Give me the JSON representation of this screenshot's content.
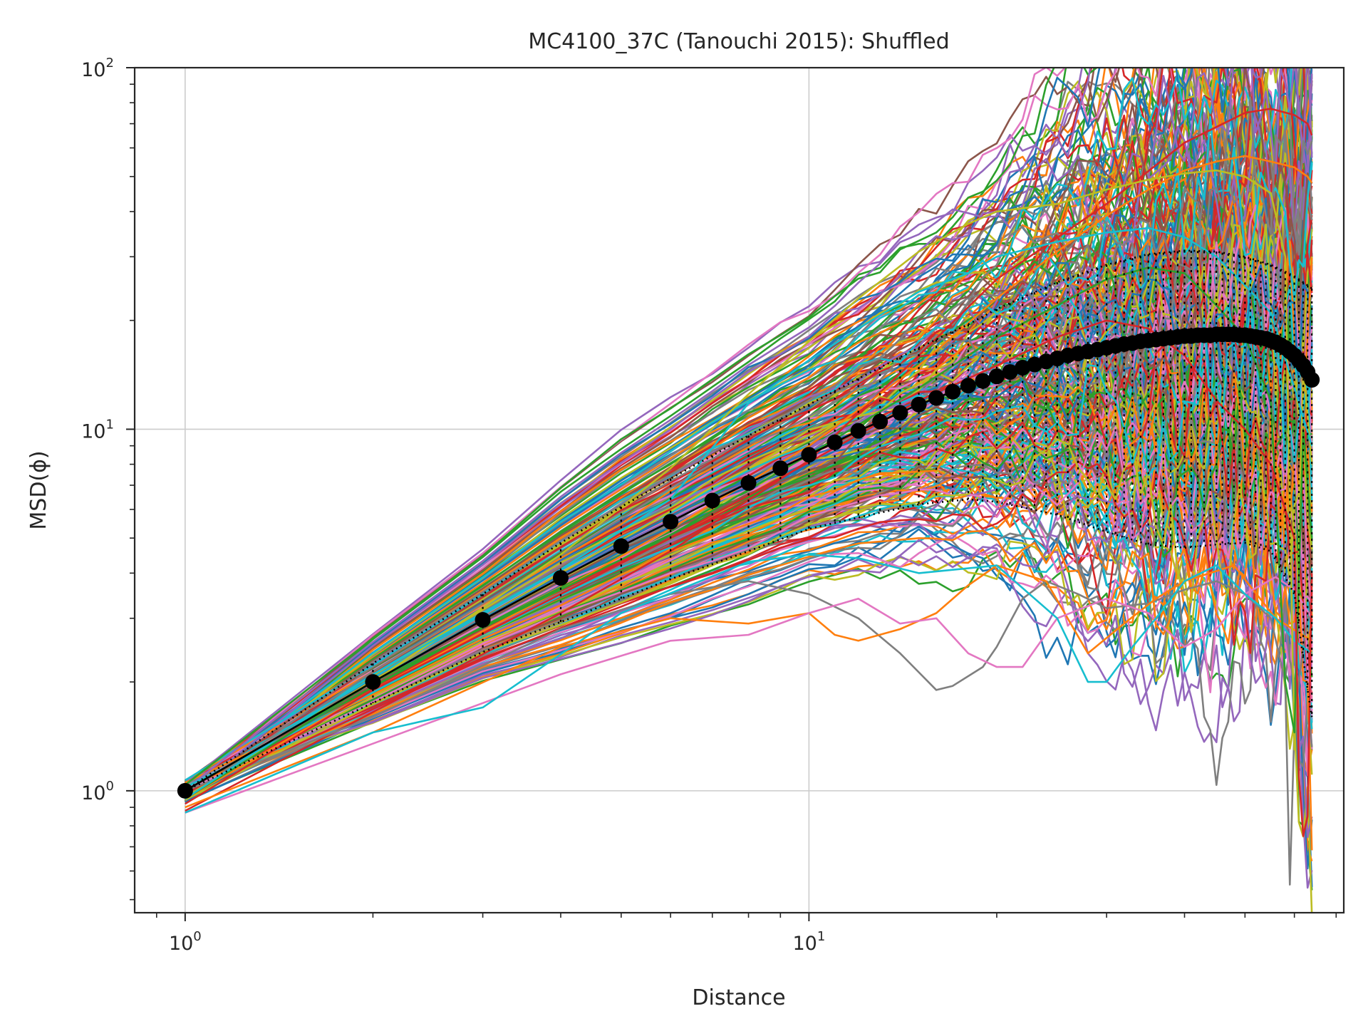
{
  "chart_data": {
    "type": "line",
    "title": "MC4100_37C (Tanouchi 2015): Shuffled",
    "xlabel": "Distance",
    "ylabel": "MSD(ϕ)",
    "xscale": "log",
    "yscale": "log",
    "xlim": [
      0.83,
      72
    ],
    "ylim": [
      0.46,
      100
    ],
    "grid": true,
    "x_major_ticks": [
      {
        "value": 1,
        "base": "10",
        "exp": "0"
      },
      {
        "value": 10,
        "base": "10",
        "exp": "1"
      }
    ],
    "y_major_ticks": [
      {
        "value": 1,
        "base": "10",
        "exp": "0"
      },
      {
        "value": 10,
        "base": "10",
        "exp": "1"
      },
      {
        "value": 100,
        "base": "10",
        "exp": "2"
      }
    ],
    "mean_series": {
      "x": [
        1,
        2,
        3,
        4,
        5,
        6,
        7,
        8,
        9,
        10,
        11,
        12,
        13,
        14,
        15,
        16,
        17,
        18,
        19,
        20,
        21,
        22,
        23,
        24,
        25,
        26,
        27,
        28,
        29,
        30,
        31,
        32,
        33,
        34,
        35,
        36,
        37,
        38,
        39,
        40,
        41,
        42,
        43,
        44,
        45,
        46,
        47,
        48,
        49,
        50,
        51,
        52,
        53,
        54,
        55,
        56,
        57,
        58,
        59,
        60,
        61,
        62,
        63,
        64
      ],
      "y": [
        1.0,
        2.0,
        2.97,
        3.88,
        4.75,
        5.55,
        6.35,
        7.1,
        7.8,
        8.5,
        9.2,
        9.9,
        10.5,
        11.1,
        11.7,
        12.2,
        12.7,
        13.2,
        13.6,
        14.0,
        14.4,
        14.8,
        15.1,
        15.4,
        15.7,
        16.0,
        16.2,
        16.4,
        16.6,
        16.8,
        17.0,
        17.2,
        17.3,
        17.5,
        17.6,
        17.7,
        17.8,
        17.9,
        18.0,
        18.1,
        18.1,
        18.2,
        18.2,
        18.2,
        18.3,
        18.3,
        18.3,
        18.3,
        18.2,
        18.2,
        18.1,
        18.0,
        17.9,
        17.8,
        17.6,
        17.4,
        17.1,
        16.8,
        16.4,
        16.0,
        15.5,
        15.0,
        14.4,
        13.7
      ]
    },
    "band_upper": {
      "x": [
        1,
        2,
        3,
        4,
        5,
        6,
        8,
        10,
        12,
        15,
        18,
        20,
        25,
        30,
        35,
        40,
        45,
        50,
        55,
        60,
        63,
        64
      ],
      "y": [
        1.0,
        2.25,
        3.5,
        4.85,
        6.1,
        7.3,
        9.6,
        11.7,
        13.8,
        16.8,
        19.5,
        21.5,
        25.5,
        28.5,
        30.5,
        31.2,
        31.0,
        30.0,
        28.5,
        26.5,
        25.0,
        24.5
      ]
    },
    "band_lower": {
      "x": [
        1,
        2,
        3,
        4,
        5,
        6,
        8,
        10,
        12,
        15,
        18,
        20,
        25,
        30,
        35,
        40,
        45,
        50,
        55,
        60,
        63,
        64
      ],
      "y": [
        1.0,
        1.75,
        2.42,
        2.93,
        3.4,
        3.85,
        4.6,
        5.3,
        5.7,
        6.2,
        6.4,
        6.3,
        5.8,
        5.2,
        4.8,
        4.7,
        4.8,
        4.85,
        4.6,
        3.5,
        1.9,
        1.6
      ]
    },
    "outlier_traces": [
      {
        "color": "#d62728",
        "x": [
          1,
          2,
          4,
          6,
          10,
          15,
          20,
          30,
          40,
          50,
          55,
          60,
          63,
          64
        ],
        "y": [
          0.88,
          1.65,
          3.1,
          4.6,
          8.2,
          16,
          26,
          42,
          62,
          75,
          77,
          74,
          70,
          65
        ]
      },
      {
        "color": "#7f7f7f",
        "x": [
          1,
          2,
          4,
          6,
          8,
          10,
          12,
          14,
          16,
          17,
          19,
          20,
          22,
          24,
          27,
          30,
          35,
          40,
          45,
          50,
          55,
          58,
          59,
          60,
          61,
          62,
          63,
          64
        ],
        "y": [
          1,
          1.6,
          2.8,
          3.5,
          3.8,
          3.5,
          3.0,
          2.4,
          1.9,
          1.95,
          2.2,
          2.5,
          3.4,
          3.8,
          3.5,
          3.2,
          3.3,
          3.6,
          3.8,
          3.5,
          3.0,
          2.0,
          0.55,
          1.5,
          2.0,
          2.5,
          3.0,
          3.2
        ]
      },
      {
        "color": "#ff7f0e",
        "x": [
          1,
          2,
          4,
          6,
          8,
          10,
          11,
          12,
          14,
          16,
          18,
          20,
          24,
          28,
          32,
          36,
          40,
          48,
          56,
          64
        ],
        "y": [
          0.9,
          1.45,
          2.5,
          3.0,
          2.9,
          3.1,
          2.7,
          2.6,
          2.8,
          3.1,
          3.7,
          4.2,
          3.8,
          2.4,
          2.9,
          3.4,
          3.8,
          4.2,
          3.0,
          2.6
        ]
      },
      {
        "color": "#e377c2",
        "x": [
          1,
          2,
          4,
          6,
          8,
          10,
          12,
          14,
          16,
          18,
          20,
          22,
          25,
          30,
          35,
          40,
          45,
          50,
          56,
          60,
          64
        ],
        "y": [
          0.87,
          1.35,
          2.1,
          2.6,
          2.7,
          3.1,
          3.4,
          2.9,
          3.0,
          2.4,
          2.2,
          2.2,
          3.0,
          3.4,
          3.1,
          2.5,
          2.8,
          3.5,
          3.9,
          3.6,
          3.0
        ]
      },
      {
        "color": "#17becf",
        "x": [
          1,
          2,
          3,
          5,
          8,
          10,
          12,
          15,
          20,
          25,
          28,
          30,
          33,
          36,
          40,
          45,
          50,
          56,
          60,
          64
        ],
        "y": [
          0.87,
          1.45,
          1.7,
          3.1,
          4.3,
          4.5,
          4.4,
          4.0,
          4.2,
          3.0,
          2.0,
          2.0,
          2.5,
          3.0,
          3.8,
          4.2,
          3.5,
          3.0,
          2.6,
          2.4
        ]
      },
      {
        "color": "#bcbd22",
        "x": [
          1,
          2,
          4,
          6,
          8,
          10,
          12,
          15,
          18,
          20,
          25,
          30,
          35,
          40,
          45,
          50,
          55,
          58,
          60,
          62,
          64
        ],
        "y": [
          1,
          2.0,
          4.5,
          7.8,
          12.5,
          17.5,
          23,
          31,
          37,
          40,
          42,
          46,
          49,
          51,
          52,
          50,
          45,
          30,
          1.3,
          15,
          8
        ]
      },
      {
        "color": "#ff7f0e",
        "x": [
          1,
          2,
          4,
          6,
          10,
          15,
          20,
          25,
          30,
          35,
          40,
          45,
          50,
          55,
          60,
          63,
          64
        ],
        "y": [
          0.95,
          1.9,
          3.6,
          5.3,
          9.0,
          15,
          23,
          31,
          39,
          46,
          52,
          55,
          57,
          55,
          53,
          50,
          48
        ]
      },
      {
        "color": "#2ca02c",
        "x": [
          1,
          2,
          4,
          6,
          10,
          15,
          20,
          25,
          30,
          35,
          40,
          45,
          50,
          55,
          58,
          60,
          62,
          64
        ],
        "y": [
          0.95,
          2.0,
          3.6,
          5.1,
          8.5,
          13,
          18,
          22,
          26,
          28,
          27,
          22,
          18,
          12,
          2,
          1.45,
          10,
          5
        ]
      },
      {
        "color": "#d62728",
        "x": [
          1,
          2,
          4,
          6,
          10,
          15,
          20,
          25,
          30,
          35,
          40,
          45,
          50,
          55,
          60,
          61,
          62,
          63,
          64
        ],
        "y": [
          0.92,
          1.9,
          3.5,
          5.0,
          8.1,
          12,
          15,
          18,
          20,
          19,
          16,
          12,
          10,
          8,
          5,
          1.1,
          0.75,
          0.85,
          4
        ]
      },
      {
        "color": "#17becf",
        "x": [
          1,
          2,
          4,
          6,
          8,
          10,
          12,
          15,
          18,
          20,
          25,
          30,
          35,
          40,
          45,
          50,
          55,
          60,
          64
        ],
        "y": [
          0.95,
          2.1,
          4.1,
          6.4,
          11.8,
          15.5,
          19,
          24,
          27,
          30,
          33,
          35,
          36,
          34,
          30,
          25,
          21,
          13,
          9
        ]
      }
    ],
    "background_traces": {
      "count": 300,
      "colors": [
        "#1f77b4",
        "#ff7f0e",
        "#2ca02c",
        "#d62728",
        "#9467bd",
        "#8c564b",
        "#e377c2",
        "#7f7f7f",
        "#bcbd22",
        "#17becf"
      ]
    }
  }
}
